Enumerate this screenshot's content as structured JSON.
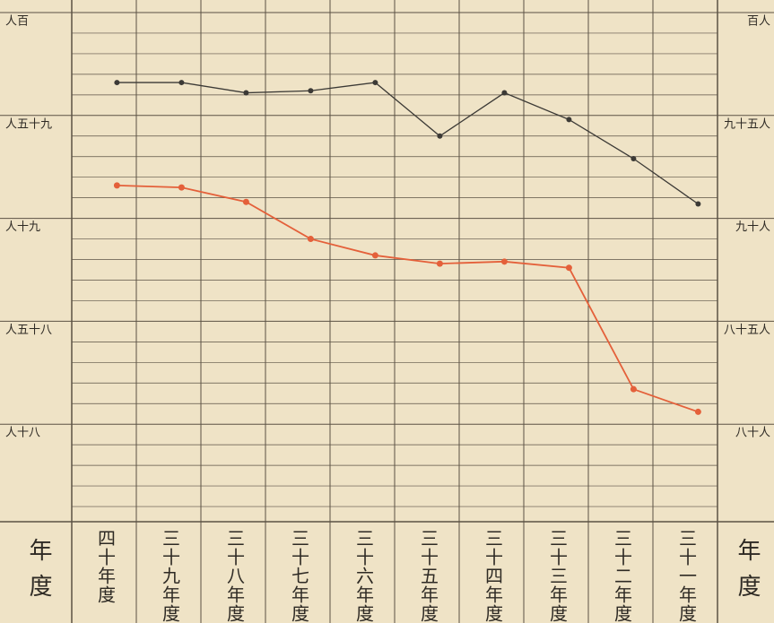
{
  "chart_data": {
    "type": "line",
    "categories": [
      "四十年度",
      "三十九年度",
      "三十八年度",
      "三十七年度",
      "三十六年度",
      "三十五年度",
      "三十四年度",
      "三十三年度",
      "三十二年度",
      "三十一年度"
    ],
    "x_label_left": "年度",
    "x_label_right": "年度",
    "series": [
      {
        "color": "#3c3a36",
        "values": [
          96.6,
          96.6,
          96.1,
          96.2,
          96.6,
          94.0,
          96.1,
          94.8,
          92.9,
          90.7
        ]
      },
      {
        "color": "#e4603a",
        "values": [
          91.6,
          91.5,
          90.8,
          89.0,
          88.2,
          87.8,
          87.9,
          87.6,
          81.7,
          80.6
        ]
      }
    ],
    "ylim": [
      75,
      100
    ],
    "yticks": [
      {
        "value": 100,
        "label": "人百"
      },
      {
        "value": 95,
        "label": "人五十九"
      },
      {
        "value": 90,
        "label": "人十九"
      },
      {
        "value": 85,
        "label": "人五十八"
      },
      {
        "value": 80,
        "label": "人十八"
      }
    ],
    "y2lim": [
      75,
      100
    ],
    "y2ticks": [
      {
        "value": 100,
        "label": "百人"
      },
      {
        "value": 95,
        "label": "九十五人"
      },
      {
        "value": 90,
        "label": "九十人"
      },
      {
        "value": 85,
        "label": "八十五人"
      },
      {
        "value": 80,
        "label": "八十人"
      }
    ],
    "minor_yticks": [
      76,
      77,
      78,
      79,
      81,
      82,
      83,
      84,
      86,
      87,
      88,
      89,
      91,
      92,
      93,
      94,
      96,
      97,
      98,
      99
    ],
    "grid": true
  }
}
